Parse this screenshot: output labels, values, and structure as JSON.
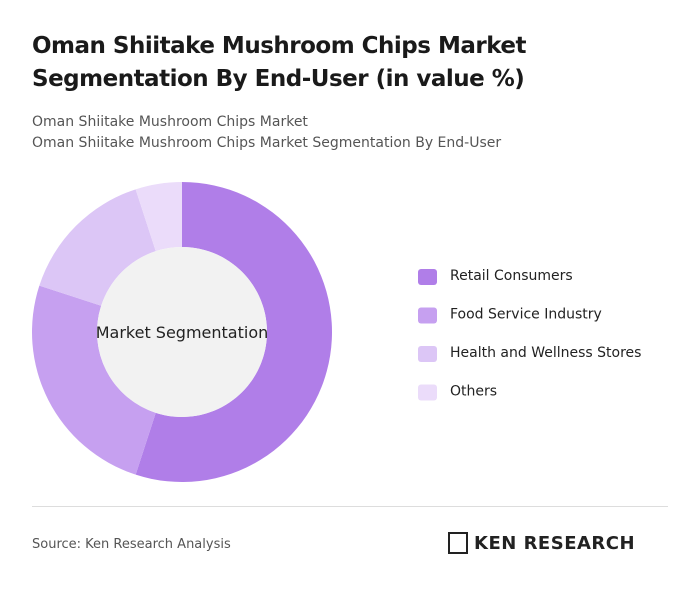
{
  "chart_data": {
    "type": "donut",
    "title": "Oman Shiitake Mushroom Chips Market Segmentation By End-User (in value %)",
    "subtitle": "Oman Shiitake Mushroom Chips Market",
    "subtitle2": "Oman Shiitake Mushroom Chips Market Segmentation By End-User",
    "center_label": "Market Segmentation",
    "categories": [
      "Retail Consumers",
      "Food Service Industry",
      "Health and Wellness Stores",
      "Others"
    ],
    "values": [
      55,
      25,
      15,
      5
    ],
    "colors": [
      "#b07ee8",
      "#c6a0f0",
      "#dcc6f6",
      "#ebdcfa"
    ],
    "source": "Source: Ken Research Analysis",
    "logo": "KEN RESEARCH"
  }
}
